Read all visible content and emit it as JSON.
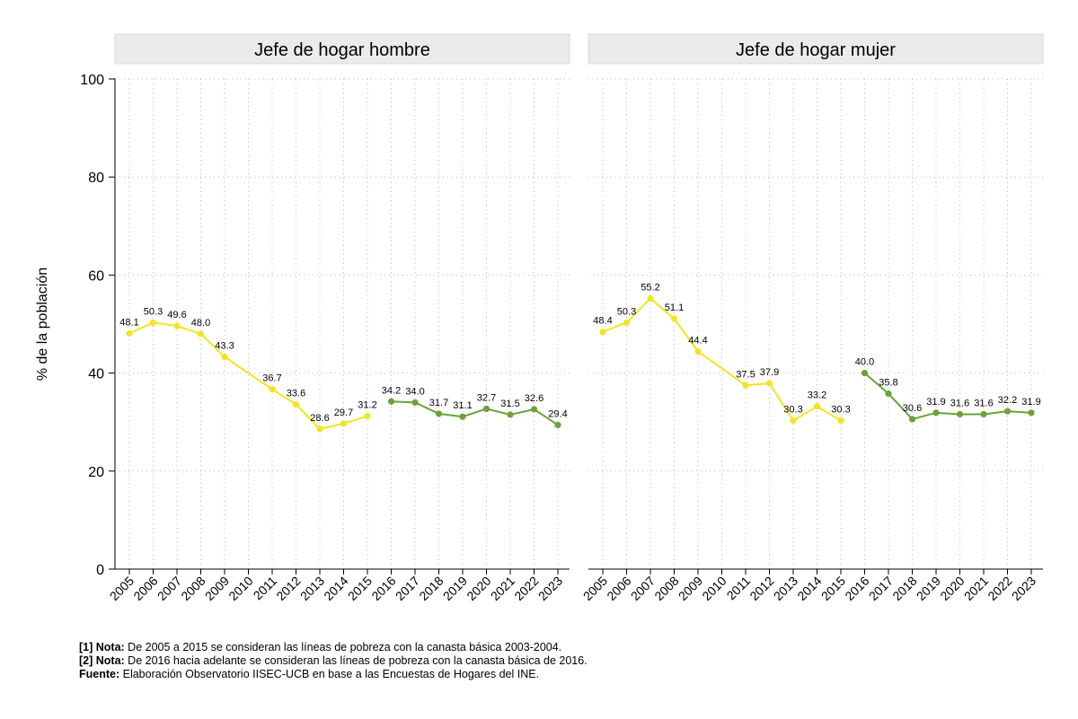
{
  "chart_data": {
    "type": "line",
    "ylabel": "% de la población",
    "ylim": [
      0,
      100
    ],
    "yticks": [
      0,
      20,
      40,
      60,
      80,
      100
    ],
    "categories": [
      "2005",
      "2006",
      "2007",
      "2008",
      "2009",
      "2010",
      "2011",
      "2012",
      "2013",
      "2014",
      "2015",
      "2016",
      "2017",
      "2018",
      "2019",
      "2020",
      "2021",
      "2022",
      "2023"
    ],
    "grid": true,
    "series_colors": {
      "canasta_2003_2004": "#f2e422",
      "canasta_2016": "#6aa33a"
    },
    "panels": [
      {
        "title": "Jefe de hogar hombre",
        "series": [
          {
            "name": "canasta_2003_2004",
            "x": [
              "2005",
              "2006",
              "2007",
              "2008",
              "2009",
              "2011",
              "2012",
              "2013",
              "2014",
              "2015"
            ],
            "values": [
              48.1,
              50.3,
              49.6,
              48.0,
              43.3,
              36.7,
              33.6,
              28.6,
              29.7,
              31.2
            ],
            "labels": [
              "48.1",
              "50.3",
              "49.6",
              "48.0",
              "43.3",
              "36.7",
              "33.6",
              "28.6",
              "29.7",
              "31.2"
            ]
          },
          {
            "name": "canasta_2016",
            "x": [
              "2016",
              "2017",
              "2018",
              "2019",
              "2020",
              "2021",
              "2022",
              "2023"
            ],
            "values": [
              34.2,
              34.0,
              31.7,
              31.1,
              32.7,
              31.5,
              32.6,
              29.4
            ],
            "labels": [
              "34.2",
              "34.0",
              "31.7",
              "31.1",
              "32.7",
              "31.5",
              "32.6",
              "29.4"
            ]
          }
        ]
      },
      {
        "title": "Jefe de hogar mujer",
        "series": [
          {
            "name": "canasta_2003_2004",
            "x": [
              "2005",
              "2006",
              "2007",
              "2008",
              "2009",
              "2011",
              "2012",
              "2013",
              "2014",
              "2015"
            ],
            "values": [
              48.4,
              50.3,
              55.2,
              51.1,
              44.4,
              37.5,
              37.9,
              30.3,
              33.2,
              30.3
            ],
            "labels": [
              "48.4",
              "50.3",
              "55.2",
              "51.1",
              "44.4",
              "37.5",
              "37.9",
              "30.3",
              "33.2",
              "30.3"
            ]
          },
          {
            "name": "canasta_2016",
            "x": [
              "2016",
              "2017",
              "2018",
              "2019",
              "2020",
              "2021",
              "2022",
              "2023"
            ],
            "values": [
              40.0,
              35.8,
              30.6,
              31.9,
              31.6,
              31.6,
              32.2,
              31.9
            ],
            "labels": [
              "40.0",
              "35.8",
              "30.6",
              "31.9",
              "31.6",
              "31.6",
              "32.2",
              "31.9"
            ]
          }
        ]
      }
    ]
  },
  "notes": {
    "note1_label": "[1] Nota:",
    "note1_text": " De 2005 a 2015 se consideran las líneas de pobreza con la canasta básica 2003-2004.",
    "note2_label": "[2] Nota:",
    "note2_text": " De 2016 hacia adelante se consideran las líneas de pobreza con la canasta básica de 2016.",
    "source_label": "Fuente:",
    "source_text": " Elaboración Observatorio IISEC-UCB en base a las Encuestas de Hogares del INE."
  }
}
